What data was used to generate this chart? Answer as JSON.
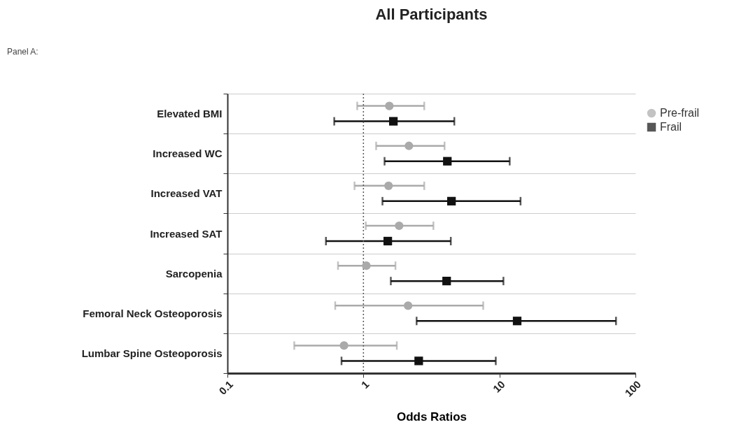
{
  "chart_data": {
    "type": "scatter",
    "orientation": "horizontal",
    "title": "All Participants",
    "annotations": [
      "Panel A:"
    ],
    "xlabel": "Odds Ratios",
    "categories": [
      "Elevated BMI",
      "Increased WC",
      "Increased VAT",
      "Increased SAT",
      "Sarcopenia",
      "Femoral Neck Osteoporosis",
      "Lumbar Spine Osteoporosis"
    ],
    "series": [
      {
        "name": "Pre-frail",
        "color": "#aaaaaa",
        "marker": "circle",
        "values": [
          1.55,
          2.16,
          1.53,
          1.83,
          1.05,
          2.13,
          0.72
        ],
        "errors": [
          [
            0.9,
            2.8
          ],
          [
            1.24,
            3.95
          ],
          [
            0.86,
            2.8
          ],
          [
            1.04,
            3.27
          ],
          [
            0.65,
            1.72
          ],
          [
            0.62,
            7.6
          ],
          [
            0.31,
            1.76
          ]
        ]
      },
      {
        "name": "Frail",
        "color": "#111111",
        "marker": "square",
        "values": [
          1.66,
          4.14,
          4.44,
          1.51,
          4.09,
          13.5,
          2.55
        ],
        "errors": [
          [
            0.61,
            4.66
          ],
          [
            1.43,
            11.9
          ],
          [
            1.38,
            14.3
          ],
          [
            0.53,
            4.39
          ],
          [
            1.59,
            10.7
          ],
          [
            2.46,
            72
          ],
          [
            0.69,
            9.4
          ]
        ]
      }
    ],
    "log": "x",
    "xlim": [
      0.1,
      100
    ],
    "xticks": [
      0.1,
      1,
      10,
      100
    ],
    "grid": "y",
    "legend": "top right",
    "ref_lines": [
      {
        "axis": "x",
        "value": 1,
        "line_style": "dotted",
        "color": "#555555"
      }
    ]
  }
}
